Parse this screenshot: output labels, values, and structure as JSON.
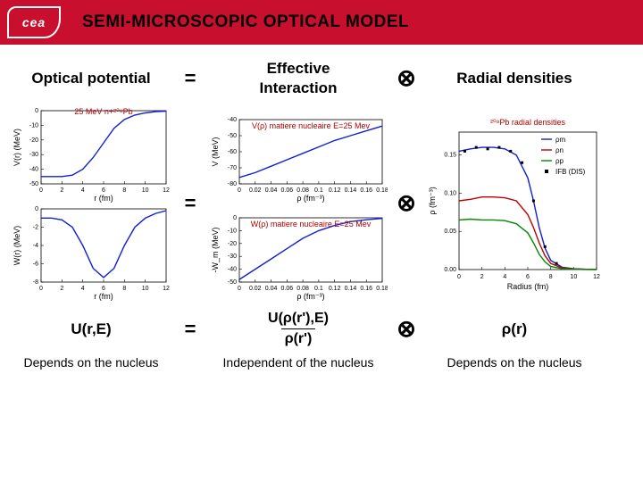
{
  "header": {
    "logo_text": "cea",
    "title": "SEMI-MICROSCOPIC OPTICAL MODEL"
  },
  "row1": {
    "left": "Optical potential",
    "op1": "=",
    "mid": "Effective\nInteraction",
    "op2": "⊗",
    "right": "Radial densities"
  },
  "row3": {
    "left": "U(r,E)",
    "op1": "=",
    "frac_num": "U(ρ(r'),E)",
    "frac_den": "ρ(r')",
    "op2": "⊗",
    "right": "ρ(r)"
  },
  "row4": {
    "left": "Depends on the nucleus",
    "mid": "Independent of the nucleus",
    "right": "Depends on the nucleus"
  },
  "charts": {
    "col1_top": {
      "title": "25 MeV n+²⁰⁸Pb",
      "xlim": [
        0,
        12
      ],
      "ylim": [
        -50,
        0
      ],
      "ytick": [
        -50,
        -40,
        -30,
        -20,
        -10,
        0
      ],
      "xtick": [
        0,
        2,
        4,
        6,
        8,
        10,
        12
      ],
      "ylabel": "V(r) (MeV)",
      "xlabel": "r (fm)",
      "line_color": "#1020d0",
      "pts": [
        [
          0,
          -45
        ],
        [
          1,
          -45
        ],
        [
          2,
          -45
        ],
        [
          3,
          -44
        ],
        [
          4,
          -40
        ],
        [
          5,
          -32
        ],
        [
          6,
          -22
        ],
        [
          7,
          -12
        ],
        [
          8,
          -6
        ],
        [
          9,
          -3
        ],
        [
          10,
          -1.5
        ],
        [
          11,
          -0.7
        ],
        [
          12,
          -0.3
        ]
      ]
    },
    "col1_bot": {
      "xlim": [
        0,
        12
      ],
      "ylim": [
        -8,
        0
      ],
      "ytick": [
        -8,
        -6,
        -4,
        -2,
        0
      ],
      "xtick": [
        0,
        2,
        4,
        6,
        8,
        10,
        12
      ],
      "ylabel": "W(r) (MeV)",
      "xlabel": "r (fm)",
      "line_color": "#1020d0",
      "pts": [
        [
          0,
          -1
        ],
        [
          1,
          -1
        ],
        [
          2,
          -1.2
        ],
        [
          3,
          -2
        ],
        [
          4,
          -4
        ],
        [
          5,
          -6.5
        ],
        [
          6,
          -7.5
        ],
        [
          7,
          -6.5
        ],
        [
          8,
          -4
        ],
        [
          9,
          -2
        ],
        [
          10,
          -1
        ],
        [
          11,
          -0.5
        ],
        [
          12,
          -0.2
        ]
      ]
    },
    "col2_top": {
      "title": "V(ρ) matiere nucleaire E=25 Mev",
      "xlim": [
        0,
        0.18
      ],
      "ylim": [
        -80,
        -40
      ],
      "ytick": [
        -80,
        -70,
        -60,
        -50,
        -40
      ],
      "xtick": [
        0,
        0.02,
        0.04,
        0.06,
        0.08,
        0.1,
        0.12,
        0.14,
        0.16,
        0.18
      ],
      "ylabel": "V (MeV)",
      "xlabel": "ρ (fm⁻³)",
      "line_color": "#1020d0",
      "pts": [
        [
          0,
          -76
        ],
        [
          0.02,
          -73
        ],
        [
          0.04,
          -69
        ],
        [
          0.06,
          -65
        ],
        [
          0.08,
          -61
        ],
        [
          0.1,
          -57
        ],
        [
          0.12,
          -53
        ],
        [
          0.14,
          -50
        ],
        [
          0.16,
          -47
        ],
        [
          0.18,
          -44
        ]
      ]
    },
    "col2_bot": {
      "title": "W(ρ) matiere nucleaire E=25 Mev",
      "xlim": [
        0,
        0.18
      ],
      "ylim": [
        -50,
        0
      ],
      "ytick": [
        -50,
        -40,
        -30,
        -20,
        -10,
        0
      ],
      "xtick": [
        0,
        0.02,
        0.04,
        0.06,
        0.08,
        0.1,
        0.12,
        0.14,
        0.16,
        0.18
      ],
      "ylabel": "-W_m (MeV)",
      "xlabel": "ρ (fm⁻³)",
      "line_color": "#1020d0",
      "pts": [
        [
          0,
          -48
        ],
        [
          0.02,
          -40
        ],
        [
          0.04,
          -32
        ],
        [
          0.06,
          -24
        ],
        [
          0.08,
          -16
        ],
        [
          0.1,
          -10
        ],
        [
          0.12,
          -6
        ],
        [
          0.14,
          -3
        ],
        [
          0.16,
          -1.5
        ],
        [
          0.18,
          -0.5
        ]
      ]
    },
    "col3": {
      "title": "²⁰⁸Pb radial densities",
      "xlim": [
        0,
        12
      ],
      "ylim": [
        0,
        0.18
      ],
      "ytick": [
        0,
        0.05,
        0.1,
        0.15
      ],
      "xtick": [
        0,
        2,
        4,
        6,
        8,
        10,
        12
      ],
      "ylabel": "ρ (fm⁻³)",
      "xlabel": "Radius (fm)",
      "bg": "#ffffff",
      "legend": [
        "ρm",
        "ρn",
        "ρp",
        "IFB (DIS)"
      ],
      "series": [
        {
          "label": "ρm",
          "color": "#1020d0",
          "pts": [
            [
              0,
              0.155
            ],
            [
              1,
              0.158
            ],
            [
              2,
              0.16
            ],
            [
              3,
              0.16
            ],
            [
              4,
              0.158
            ],
            [
              5,
              0.15
            ],
            [
              6,
              0.12
            ],
            [
              6.5,
              0.09
            ],
            [
              7,
              0.055
            ],
            [
              7.5,
              0.028
            ],
            [
              8,
              0.012
            ],
            [
              9,
              0.003
            ],
            [
              10,
              0.001
            ],
            [
              11,
              0.0005
            ],
            [
              12,
              0.0002
            ]
          ]
        },
        {
          "label": "ρn",
          "color": "#c00000",
          "pts": [
            [
              0,
              0.09
            ],
            [
              1,
              0.092
            ],
            [
              2,
              0.095
            ],
            [
              3,
              0.095
            ],
            [
              4,
              0.094
            ],
            [
              5,
              0.09
            ],
            [
              6,
              0.072
            ],
            [
              6.5,
              0.055
            ],
            [
              7,
              0.035
            ],
            [
              7.5,
              0.018
            ],
            [
              8,
              0.008
            ],
            [
              9,
              0.002
            ],
            [
              10,
              0.0008
            ],
            [
              11,
              0.0003
            ],
            [
              12,
              0.0001
            ]
          ]
        },
        {
          "label": "ρp",
          "color": "#008800",
          "pts": [
            [
              0,
              0.065
            ],
            [
              1,
              0.066
            ],
            [
              2,
              0.065
            ],
            [
              3,
              0.065
            ],
            [
              4,
              0.064
            ],
            [
              5,
              0.06
            ],
            [
              6,
              0.048
            ],
            [
              6.5,
              0.035
            ],
            [
              7,
              0.02
            ],
            [
              7.5,
              0.01
            ],
            [
              8,
              0.004
            ],
            [
              9,
              0.001
            ],
            [
              10,
              0.0004
            ],
            [
              11,
              0.0001
            ],
            [
              12,
              5e-05
            ]
          ]
        }
      ],
      "scatter": {
        "label": "IFB",
        "color": "#000000",
        "pts": [
          [
            0.5,
            0.155
          ],
          [
            1.5,
            0.16
          ],
          [
            2.5,
            0.158
          ],
          [
            3.5,
            0.16
          ],
          [
            4.5,
            0.155
          ],
          [
            5.5,
            0.14
          ],
          [
            6.5,
            0.09
          ],
          [
            7.5,
            0.03
          ],
          [
            8.5,
            0.008
          ]
        ]
      }
    }
  },
  "style": {
    "header_bg": "#c8102e",
    "page_bg": "#ffffff",
    "text_color": "#000000",
    "axis_color": "#000000",
    "tick_fontsize": 7,
    "label_fontsize": 9,
    "title_fontsize": 9
  }
}
